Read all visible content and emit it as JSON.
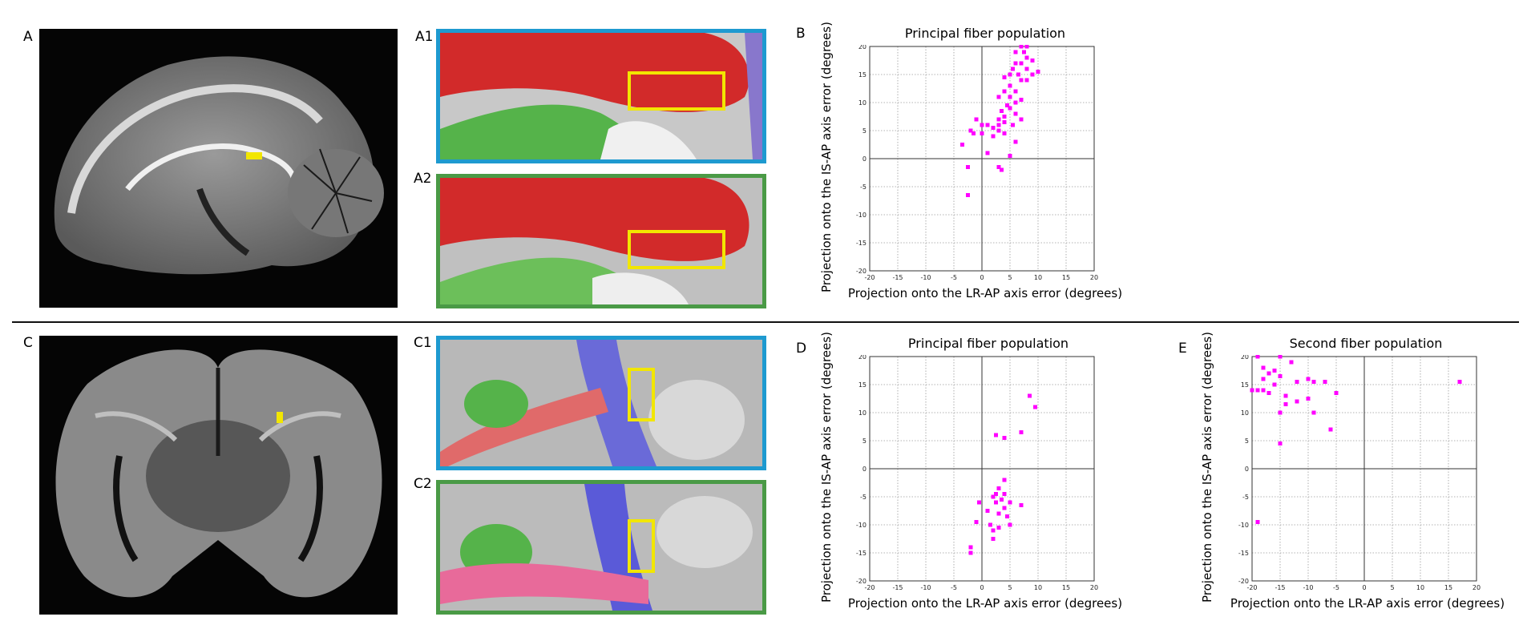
{
  "panels": {
    "A": "A",
    "A1": "A1",
    "A2": "A2",
    "B": "B",
    "C": "C",
    "C1": "C1",
    "C2": "C2",
    "D": "D",
    "E": "E"
  },
  "colors": {
    "marker": "#ff00ff",
    "roi_box": "#f2e600",
    "frame_blue": "#1e9ad0",
    "frame_green": "#4a9a46"
  },
  "chart_data": [
    {
      "id": "B",
      "type": "scatter",
      "title": "Principal fiber population",
      "xlabel": "Projection onto the LR-AP axis error (degrees)",
      "ylabel": "Projection onto the IS-AP axis error (degrees)",
      "xlim": [
        -20,
        20
      ],
      "ylim": [
        -20,
        20
      ],
      "xticks": [
        -20,
        -15,
        -10,
        -5,
        0,
        5,
        10,
        15,
        20
      ],
      "yticks": [
        -20,
        -15,
        -10,
        -5,
        0,
        5,
        10,
        15,
        20
      ],
      "grid": true,
      "points": [
        [
          7,
          20
        ],
        [
          8,
          20
        ],
        [
          7.5,
          19
        ],
        [
          6,
          19
        ],
        [
          8,
          18
        ],
        [
          6,
          17
        ],
        [
          9,
          17.5
        ],
        [
          7,
          17
        ],
        [
          5.5,
          16
        ],
        [
          8,
          16
        ],
        [
          10,
          15.5
        ],
        [
          9,
          15
        ],
        [
          6.5,
          15
        ],
        [
          5,
          15
        ],
        [
          4,
          14.5
        ],
        [
          7,
          14
        ],
        [
          8,
          14
        ],
        [
          5,
          13
        ],
        [
          6,
          12
        ],
        [
          4,
          12
        ],
        [
          5,
          11
        ],
        [
          3,
          11
        ],
        [
          7,
          10.5
        ],
        [
          6,
          10
        ],
        [
          4.5,
          9.5
        ],
        [
          5,
          9
        ],
        [
          3.5,
          8.5
        ],
        [
          6,
          8
        ],
        [
          4,
          7.5
        ],
        [
          7,
          7
        ],
        [
          3,
          7
        ],
        [
          4,
          6.5
        ],
        [
          5.5,
          6
        ],
        [
          -1,
          7
        ],
        [
          3,
          6
        ],
        [
          1,
          6
        ],
        [
          0,
          6
        ],
        [
          2,
          5.5
        ],
        [
          -2,
          5
        ],
        [
          3,
          5
        ],
        [
          4,
          4.5
        ],
        [
          0,
          4.5
        ],
        [
          2,
          4
        ],
        [
          -1.5,
          4.5
        ],
        [
          6,
          3
        ],
        [
          -3.5,
          2.5
        ],
        [
          1,
          1
        ],
        [
          5,
          0.5
        ],
        [
          -2.5,
          -1.5
        ],
        [
          3,
          -1.5
        ],
        [
          3.5,
          -2
        ],
        [
          -2.5,
          -6.5
        ]
      ]
    },
    {
      "id": "D",
      "type": "scatter",
      "title": "Principal fiber population",
      "xlabel": "Projection onto the LR-AP axis error (degrees)",
      "ylabel": "Projection onto the IS-AP axis error (degrees)",
      "xlim": [
        -20,
        20
      ],
      "ylim": [
        -20,
        20
      ],
      "xticks": [
        -20,
        -15,
        -10,
        -5,
        0,
        5,
        10,
        15,
        20
      ],
      "yticks": [
        -20,
        -15,
        -10,
        -5,
        0,
        5,
        10,
        15,
        20
      ],
      "grid": true,
      "points": [
        [
          8.5,
          13
        ],
        [
          9.5,
          11
        ],
        [
          7,
          6.5
        ],
        [
          2.5,
          6
        ],
        [
          4,
          5.5
        ],
        [
          4,
          -2
        ],
        [
          3,
          -3.5
        ],
        [
          2.5,
          -4.5
        ],
        [
          4,
          -4.5
        ],
        [
          2,
          -5
        ],
        [
          3.5,
          -5.5
        ],
        [
          5,
          -6
        ],
        [
          2.5,
          -6
        ],
        [
          -0.5,
          -6
        ],
        [
          7,
          -6.5
        ],
        [
          4,
          -7
        ],
        [
          1,
          -7.5
        ],
        [
          3,
          -8
        ],
        [
          4.5,
          -8.5
        ],
        [
          -1,
          -9.5
        ],
        [
          1.5,
          -10
        ],
        [
          5,
          -10
        ],
        [
          3,
          -10.5
        ],
        [
          2,
          -11
        ],
        [
          2,
          -12.5
        ],
        [
          -2,
          -14
        ],
        [
          -2,
          -15
        ]
      ]
    },
    {
      "id": "E",
      "type": "scatter",
      "title": "Second fiber population",
      "xlabel": "Projection onto the LR-AP axis error (degrees)",
      "ylabel": "Projection onto the IS-AP axis error (degrees)",
      "xlim": [
        -20,
        20
      ],
      "ylim": [
        -20,
        20
      ],
      "xticks": [
        -20,
        -15,
        -10,
        -5,
        0,
        5,
        10,
        15,
        20
      ],
      "yticks": [
        -20,
        -15,
        -10,
        -5,
        0,
        5,
        10,
        15,
        20
      ],
      "grid": true,
      "points": [
        [
          -19,
          20
        ],
        [
          -15,
          20
        ],
        [
          -13,
          19
        ],
        [
          -18,
          18
        ],
        [
          -16,
          17.5
        ],
        [
          -17,
          17
        ],
        [
          -15,
          16.5
        ],
        [
          -10,
          16
        ],
        [
          -18,
          16
        ],
        [
          -12,
          15.5
        ],
        [
          -9,
          15.5
        ],
        [
          -16,
          15
        ],
        [
          17,
          15.5
        ],
        [
          -7,
          15.5
        ],
        [
          -19,
          14
        ],
        [
          -18,
          14
        ],
        [
          -17,
          13.5
        ],
        [
          -20,
          14
        ],
        [
          -14,
          13
        ],
        [
          -5,
          13.5
        ],
        [
          -10,
          12.5
        ],
        [
          -12,
          12
        ],
        [
          -14,
          11.5
        ],
        [
          -15,
          10
        ],
        [
          -9,
          10
        ],
        [
          -6,
          7
        ],
        [
          -15,
          4.5
        ],
        [
          -19,
          -9.5
        ]
      ]
    }
  ]
}
